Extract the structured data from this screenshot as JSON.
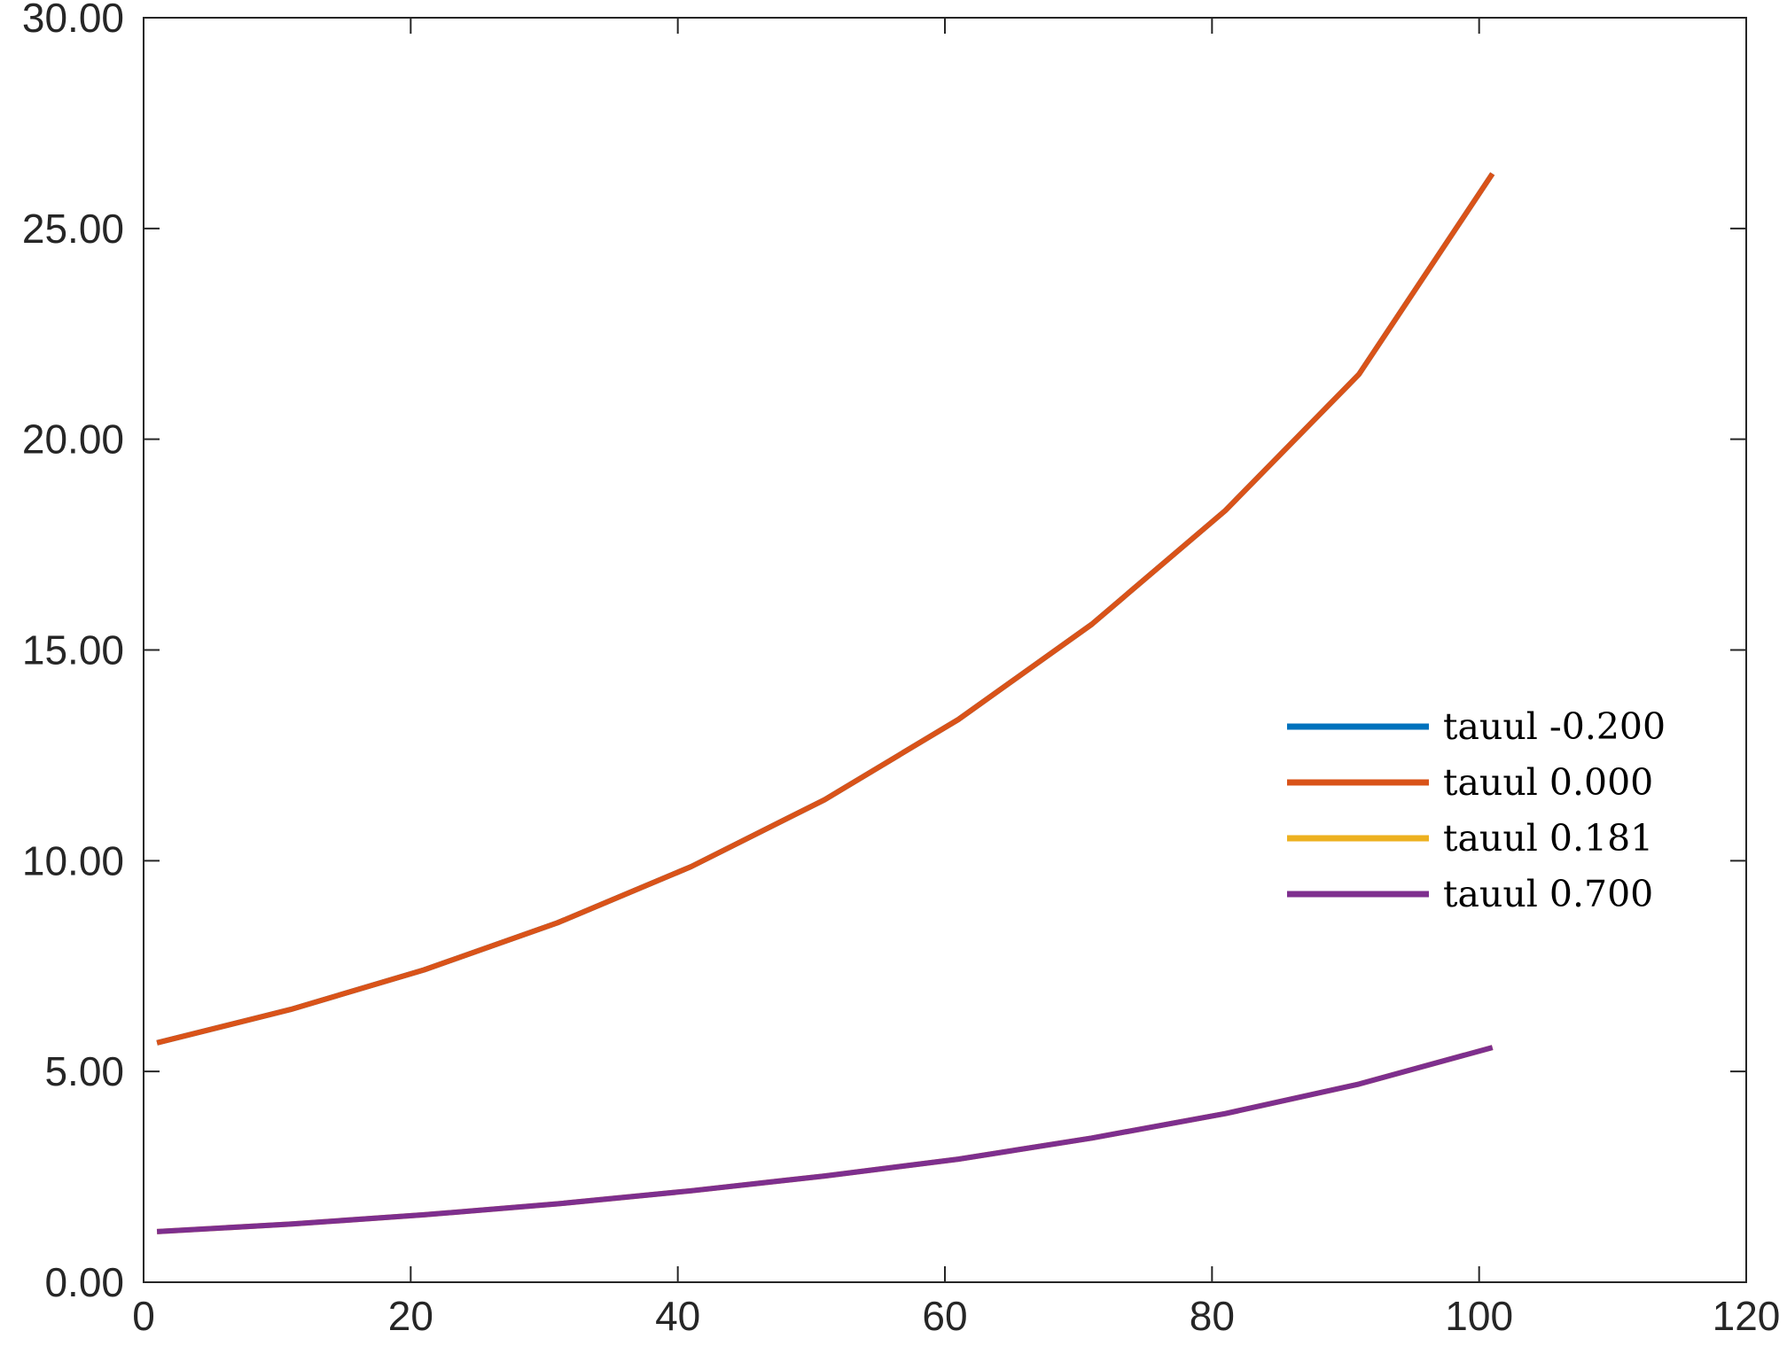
{
  "chart_data": {
    "type": "line",
    "title": "",
    "xlabel": "",
    "ylabel": "",
    "xlim": [
      0,
      120
    ],
    "ylim": [
      0,
      30
    ],
    "x_ticks": [
      0,
      20,
      40,
      60,
      80,
      100,
      120
    ],
    "x_tick_labels": [
      "0",
      "20",
      "40",
      "60",
      "80",
      "100",
      "120"
    ],
    "y_ticks": [
      0,
      5,
      10,
      15,
      20,
      25,
      30
    ],
    "y_tick_labels": [
      "0.00",
      "5.00",
      "10.00",
      "15.00",
      "20.00",
      "25.00",
      "30.00"
    ],
    "grid": false,
    "legend_position": "right",
    "x": [
      1,
      11,
      21,
      31,
      41,
      51,
      61,
      71,
      81,
      91,
      101
    ],
    "series": [
      {
        "name": "tauul -0.200",
        "color": "#0072BD",
        "values": [
          5.68,
          6.47,
          7.41,
          8.53,
          9.86,
          11.45,
          13.35,
          15.61,
          18.31,
          21.54,
          26.3
        ]
      },
      {
        "name": "tauul 0.000",
        "color": "#D95319",
        "values": [
          5.68,
          6.47,
          7.41,
          8.53,
          9.86,
          11.45,
          13.35,
          15.61,
          18.31,
          21.54,
          26.3
        ]
      },
      {
        "name": "tauul 0.181",
        "color": "#EDB120",
        "values": [
          1.2,
          1.38,
          1.6,
          1.86,
          2.17,
          2.52,
          2.92,
          3.42,
          4.0,
          4.7,
          5.57
        ]
      },
      {
        "name": "tauul 0.700",
        "color": "#7E2F8E",
        "values": [
          1.2,
          1.38,
          1.6,
          1.86,
          2.17,
          2.52,
          2.92,
          3.42,
          4.0,
          4.7,
          5.57
        ]
      }
    ]
  }
}
